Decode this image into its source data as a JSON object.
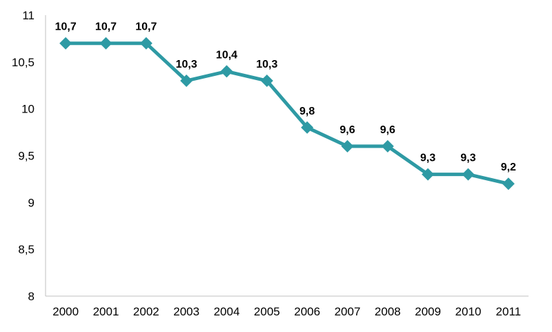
{
  "chart_data": {
    "type": "line",
    "title": "",
    "xlabel": "",
    "ylabel": "",
    "x": [
      "2000",
      "2001",
      "2002",
      "2003",
      "2004",
      "2005",
      "2006",
      "2007",
      "2008",
      "2009",
      "2010",
      "2011"
    ],
    "series": [
      {
        "values": [
          10.7,
          10.7,
          10.7,
          10.3,
          10.4,
          10.3,
          9.8,
          9.6,
          9.6,
          9.3,
          9.3,
          9.2
        ],
        "labels": [
          "10,7",
          "10,7",
          "10,7",
          "10,3",
          "10,4",
          "10,3",
          "9,8",
          "9,6",
          "9,6",
          "9,3",
          "9,3",
          "9,2"
        ],
        "color": "#2e9aa4",
        "marker": "diamond"
      }
    ],
    "ylim": [
      8,
      11
    ],
    "yticks": [
      8,
      8.5,
      9,
      9.5,
      10,
      10.5,
      11
    ],
    "ytick_labels": [
      "8",
      "8,5",
      "9",
      "9,5",
      "10",
      "10,5",
      "11"
    ],
    "grid": false,
    "legend": "none"
  }
}
